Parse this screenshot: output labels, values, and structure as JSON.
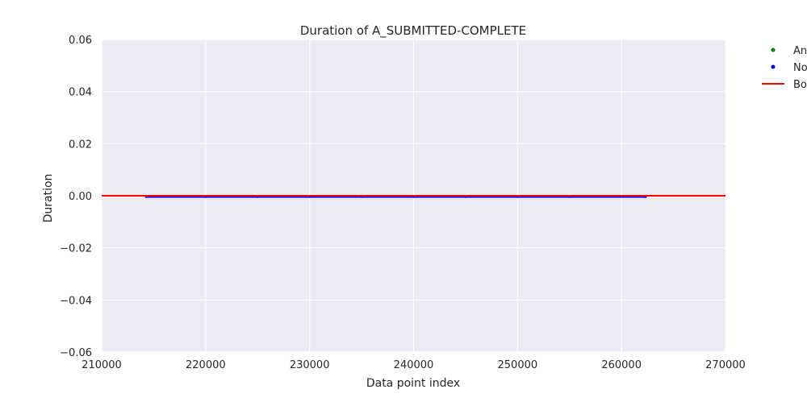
{
  "chart_data": {
    "type": "scatter",
    "title": "Duration of A_SUBMITTED-COMPLETE",
    "xlabel": "Data point index",
    "ylabel": "Duration",
    "xlim": [
      210000,
      270000
    ],
    "ylim": [
      -0.06,
      0.06
    ],
    "x_ticks": [
      210000,
      220000,
      230000,
      240000,
      250000,
      260000,
      270000
    ],
    "x_tick_labels": [
      "210000",
      "220000",
      "230000",
      "240000",
      "250000",
      "260000",
      "270000"
    ],
    "y_ticks": [
      0.06,
      0.04,
      0.02,
      0.0,
      -0.02,
      -0.04,
      -0.06
    ],
    "y_tick_labels": [
      "0.06",
      "0.04",
      "0.02",
      "0.00",
      "−0.02",
      "−0.04",
      "−0.06"
    ],
    "grid": true,
    "legend_placement": "outside-top-right",
    "series": [
      {
        "name": "An",
        "kind": "points",
        "color": "#008000",
        "x": [],
        "y": []
      },
      {
        "name": "No",
        "kind": "points",
        "color": "#0000ff",
        "x": [
          214300,
          220000,
          225000,
          230000,
          235000,
          240000,
          245000,
          250000,
          255000,
          262300
        ],
        "y": [
          0,
          0,
          0,
          0,
          0,
          0,
          0,
          0,
          0,
          0
        ]
      },
      {
        "name": "Bo",
        "kind": "line",
        "color": "#ff0000",
        "x": [
          210000,
          270000
        ],
        "y": [
          0,
          0
        ]
      }
    ]
  }
}
